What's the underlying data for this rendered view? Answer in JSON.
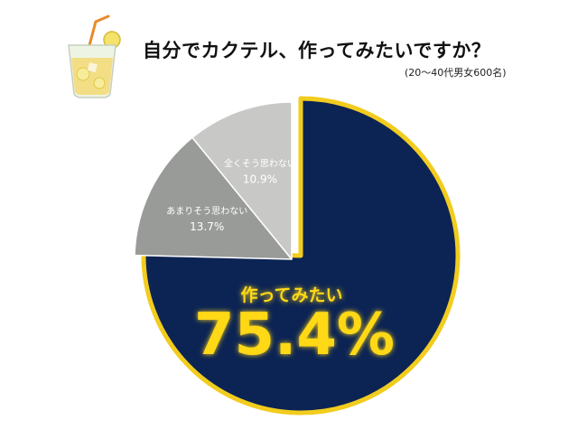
{
  "header": {
    "title": "自分でカクテル、作ってみたいですか？",
    "subtitle": "(20〜40代男女600名)",
    "icon": "cocktail-glass-icon"
  },
  "colors": {
    "main_slice": "#0c2454",
    "outline": "#f2cc1e",
    "slice_mid": "#999b99",
    "slice_light": "#c8c8c6",
    "highlight_text": "#ffd817"
  },
  "chart_data": {
    "type": "pie",
    "title": "自分でカクテル、作ってみたいですか？",
    "subtitle": "(20〜40代男女600名)",
    "categories": [
      "作ってみたい",
      "あまりそう思わない",
      "全くそう思わない"
    ],
    "values": [
      75.4,
      13.7,
      10.9
    ],
    "value_labels": [
      "75.4%",
      "13.7%",
      "10.9%"
    ],
    "start_angle_deg": 0,
    "direction": "clockwise",
    "exploded_slice": "作ってみたい",
    "legend": "none"
  }
}
